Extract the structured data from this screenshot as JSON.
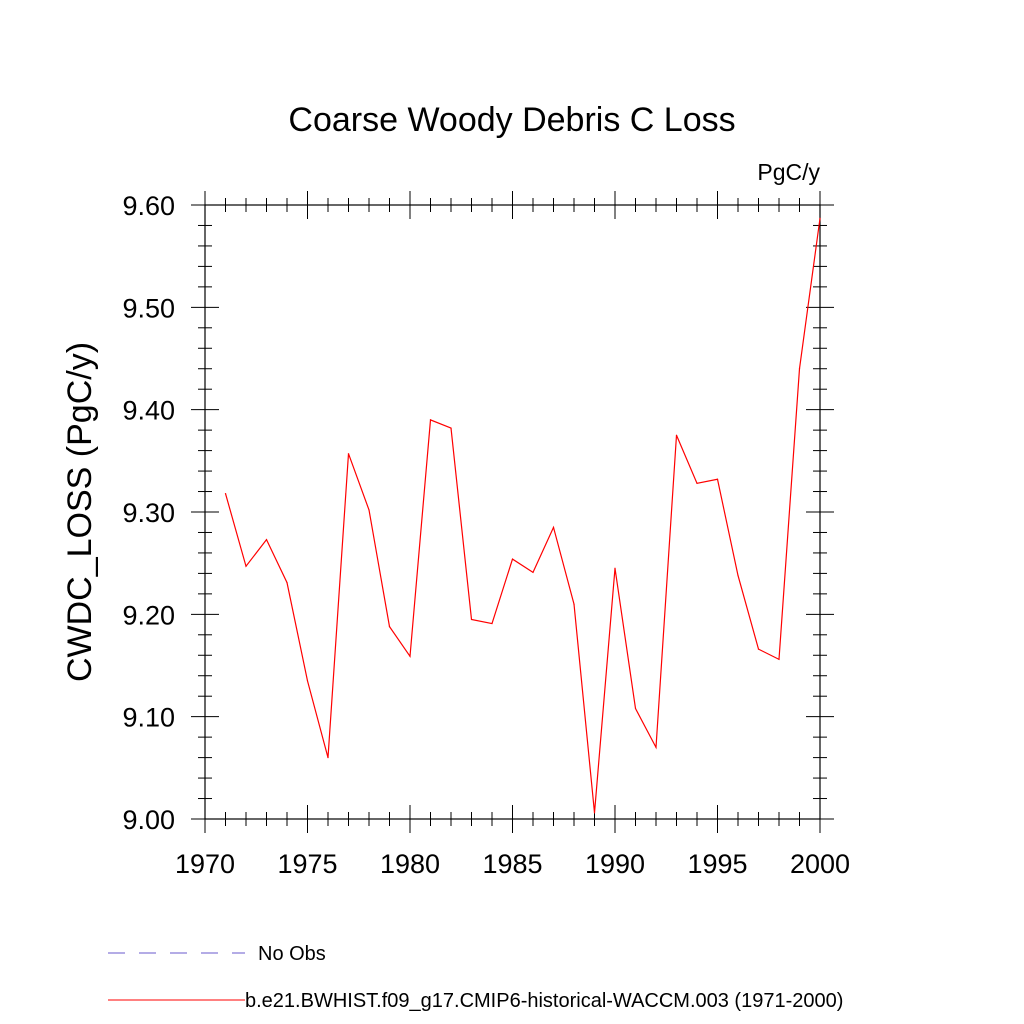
{
  "chart_data": {
    "type": "line",
    "title": "Coarse Woody Debris C Loss",
    "units_label": "PgC/y",
    "ylabel": "CWDC_LOSS  (PgC/y)",
    "xlabel": "",
    "xlim": [
      1970,
      2000
    ],
    "ylim": [
      9.0,
      9.6
    ],
    "x_ticks": [
      1970,
      1975,
      1980,
      1985,
      1990,
      1995,
      2000
    ],
    "y_ticks": [
      "9.00",
      "9.10",
      "9.20",
      "9.30",
      "9.40",
      "9.50",
      "9.60"
    ],
    "grid": false,
    "series": [
      {
        "name": "b.e21.BWHIST.f09_g17.CMIP6-historical-WACCM.003 (1971-2000)",
        "color": "#ff0000",
        "line_style": "solid",
        "x": [
          1971,
          1972,
          1973,
          1974,
          1975,
          1976,
          1977,
          1978,
          1979,
          1980,
          1981,
          1982,
          1983,
          1984,
          1985,
          1986,
          1987,
          1988,
          1989,
          1990,
          1991,
          1992,
          1993,
          1994,
          1995,
          1996,
          1997,
          1998,
          1999,
          2000
        ],
        "y": [
          9.318,
          9.247,
          9.273,
          9.231,
          9.135,
          9.06,
          9.357,
          9.302,
          9.188,
          9.159,
          9.39,
          9.382,
          9.195,
          9.191,
          9.254,
          9.241,
          9.285,
          9.21,
          9.006,
          9.245,
          9.108,
          9.07,
          9.375,
          9.328,
          9.332,
          9.238,
          9.166,
          9.156,
          9.44,
          9.587
        ]
      }
    ],
    "legend": [
      {
        "label": "No Obs",
        "color": "#6a5acd",
        "line_style": "dashed"
      },
      {
        "label": "b.e21.BWHIST.f09_g17.CMIP6-historical-WACCM.003 (1971-2000)",
        "color": "#ff0000",
        "line_style": "solid"
      }
    ],
    "legend_placement": "bottom-left"
  }
}
